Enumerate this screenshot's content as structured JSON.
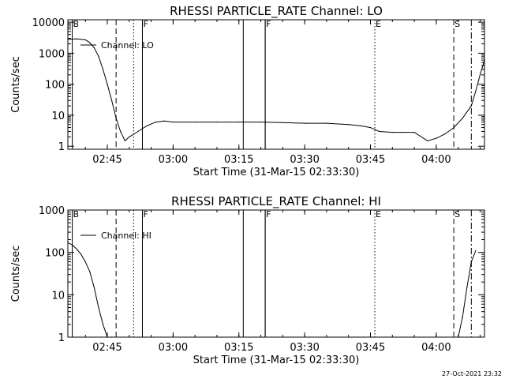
{
  "stamp": "27-Oct-2021 23:32",
  "chart_data": [
    {
      "type": "line",
      "title": "RHESSI PARTICLE_RATE Channel: LO",
      "xlabel": "Start Time (31-Mar-15 02:33:30)",
      "ylabel": "Counts/sec",
      "y_scale": "log",
      "ylim": [
        0.8,
        12000
      ],
      "xlim": [
        "02:36",
        "04:11"
      ],
      "x_ticks": [
        "02:45",
        "03:00",
        "03:15",
        "03:30",
        "03:45",
        "04:00"
      ],
      "y_ticks": [
        "1",
        "10",
        "100",
        "1000",
        "10000"
      ],
      "legend": "top-left",
      "series": [
        {
          "name": "Channel: LO",
          "x": [
            "02:36",
            "02:38",
            "02:40",
            "02:41",
            "02:42",
            "02:43",
            "02:44",
            "02:45",
            "02:46",
            "02:47",
            "02:48",
            "02:49",
            "02:50",
            "02:52",
            "02:54",
            "02:56",
            "02:58",
            "03:00",
            "03:05",
            "03:10",
            "03:15",
            "03:20",
            "03:25",
            "03:30",
            "03:35",
            "03:40",
            "03:43",
            "03:45",
            "03:47",
            "03:50",
            "03:52",
            "03:55",
            "03:58",
            "04:00",
            "04:02",
            "04:04",
            "04:06",
            "04:08",
            "04:09",
            "04:10",
            "04:11"
          ],
          "y": [
            2800,
            2900,
            2700,
            2200,
            1500,
            800,
            300,
            100,
            30,
            8,
            3,
            1.5,
            2,
            3,
            4.5,
            6,
            6.5,
            6,
            6,
            6,
            6,
            6,
            5.8,
            5.5,
            5.5,
            5,
            4.5,
            4,
            3,
            2.8,
            2.8,
            2.8,
            1.5,
            1.8,
            2.5,
            4,
            8,
            20,
            60,
            200,
            600
          ]
        }
      ],
      "vertical_markers": [
        {
          "x": "02:37",
          "label": "B",
          "style": "solid"
        },
        {
          "x": "02:47",
          "label": "",
          "style": "dashed"
        },
        {
          "x": "02:51",
          "label": "",
          "style": "dotted"
        },
        {
          "x": "02:53",
          "label": "F",
          "style": "solid"
        },
        {
          "x": "03:16",
          "label": "",
          "style": "solid"
        },
        {
          "x": "03:21",
          "label": "",
          "style": "solid"
        },
        {
          "x": "03:21",
          "label": "F",
          "style": "solid"
        },
        {
          "x": "03:46",
          "label": "E",
          "style": "dotted"
        },
        {
          "x": "04:04",
          "label": "S",
          "style": "dashed"
        },
        {
          "x": "04:08",
          "label": "",
          "style": "dash-dot"
        }
      ]
    },
    {
      "type": "line",
      "title": "RHESSI PARTICLE_RATE Channel: HI",
      "xlabel": "Start Time (31-Mar-15 02:33:30)",
      "ylabel": "Counts/sec",
      "y_scale": "log",
      "ylim": [
        1,
        1000
      ],
      "xlim": [
        "02:36",
        "04:11"
      ],
      "x_ticks": [
        "02:45",
        "03:00",
        "03:15",
        "03:30",
        "03:45",
        "04:00"
      ],
      "y_ticks": [
        "1",
        "10",
        "100",
        "1000"
      ],
      "legend": "top-left",
      "series": [
        {
          "name": "Channel: HI",
          "x": [
            "02:36",
            "02:37",
            "02:38",
            "02:39",
            "02:40",
            "02:41",
            "02:42",
            "02:43",
            "02:44",
            "02:45",
            "02:46",
            "04:05",
            "04:06",
            "04:07",
            "04:08",
            "04:09"
          ],
          "y": [
            170,
            150,
            120,
            90,
            60,
            35,
            15,
            5,
            2,
            1,
            1,
            1,
            3,
            15,
            60,
            110
          ]
        }
      ],
      "vertical_markers": [
        {
          "x": "02:37",
          "label": "B",
          "style": "solid"
        },
        {
          "x": "02:47",
          "label": "",
          "style": "dashed"
        },
        {
          "x": "02:51",
          "label": "",
          "style": "dotted"
        },
        {
          "x": "02:53",
          "label": "F",
          "style": "solid"
        },
        {
          "x": "03:16",
          "label": "",
          "style": "solid"
        },
        {
          "x": "03:21",
          "label": "",
          "style": "solid"
        },
        {
          "x": "03:21",
          "label": "F",
          "style": "solid"
        },
        {
          "x": "03:46",
          "label": "E",
          "style": "dotted"
        },
        {
          "x": "04:04",
          "label": "S",
          "style": "dashed"
        },
        {
          "x": "04:08",
          "label": "",
          "style": "dash-dot"
        }
      ]
    }
  ]
}
